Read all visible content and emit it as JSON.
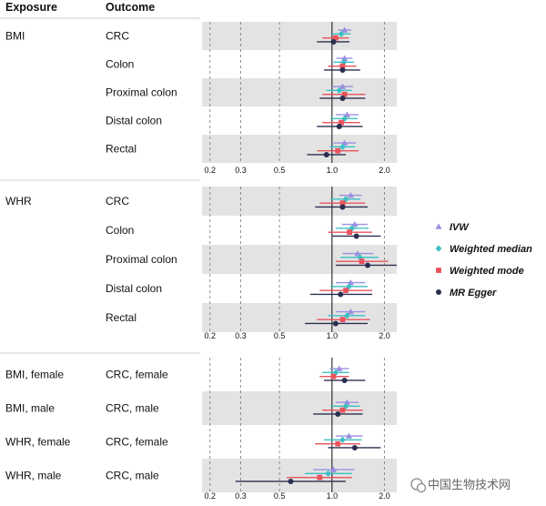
{
  "headers": {
    "exposure": "Exposure",
    "outcome": "Outcome"
  },
  "legend": [
    {
      "name": "IVW",
      "color": "#9b8fe0",
      "marker": "triangle"
    },
    {
      "name": "Weighted median",
      "color": "#3cc0c4",
      "marker": "diamond"
    },
    {
      "name": "Weighted mode",
      "color": "#e8535d",
      "marker": "square"
    },
    {
      "name": "MR Egger",
      "color": "#2b2f4f",
      "marker": "circle"
    }
  ],
  "watermark": "中国生物技术网",
  "chart_data": {
    "type": "forest",
    "x_scale": "log",
    "xlim": [
      0.18,
      2.35
    ],
    "reference_line": 1.0,
    "x_ticks": [
      "0.2",
      "0.3",
      "0.5",
      "1.0",
      "2.0"
    ],
    "x_tick_values": [
      0.2,
      0.3,
      0.5,
      1.0,
      2.0
    ],
    "methods": [
      "IVW",
      "Weighted median",
      "Weighted mode",
      "MR Egger"
    ],
    "panels": [
      {
        "rows": [
          {
            "exposure": "BMI",
            "outcome": "CRC",
            "shade": true,
            "estimates": [
              [
                1.18,
                1.08,
                1.29
              ],
              [
                1.13,
                1.0,
                1.28
              ],
              [
                1.05,
                0.88,
                1.25
              ],
              [
                1.02,
                0.82,
                1.26
              ]
            ]
          },
          {
            "exposure": "",
            "outcome": "Colon",
            "shade": false,
            "estimates": [
              [
                1.18,
                1.06,
                1.31
              ],
              [
                1.17,
                1.02,
                1.34
              ],
              [
                1.15,
                0.95,
                1.38
              ],
              [
                1.15,
                0.9,
                1.45
              ]
            ]
          },
          {
            "exposure": "",
            "outcome": "Proximal colon",
            "shade": true,
            "estimates": [
              [
                1.15,
                1.0,
                1.32
              ],
              [
                1.1,
                0.93,
                1.3
              ],
              [
                1.18,
                0.88,
                1.55
              ],
              [
                1.15,
                0.85,
                1.55
              ]
            ]
          },
          {
            "exposure": "",
            "outcome": "Distal colon",
            "shade": false,
            "estimates": [
              [
                1.22,
                1.05,
                1.42
              ],
              [
                1.18,
                0.98,
                1.4
              ],
              [
                1.13,
                0.88,
                1.45
              ],
              [
                1.1,
                0.82,
                1.5
              ]
            ]
          },
          {
            "exposure": "",
            "outcome": "Rectal",
            "shade": true,
            "estimates": [
              [
                1.18,
                1.02,
                1.37
              ],
              [
                1.15,
                0.97,
                1.36
              ],
              [
                1.08,
                0.82,
                1.42
              ],
              [
                0.93,
                0.72,
                1.2
              ]
            ]
          }
        ]
      },
      {
        "rows": [
          {
            "exposure": "WHR",
            "outcome": "CRC",
            "shade": true,
            "estimates": [
              [
                1.28,
                1.1,
                1.48
              ],
              [
                1.2,
                0.98,
                1.45
              ],
              [
                1.15,
                0.85,
                1.55
              ],
              [
                1.15,
                0.8,
                1.6
              ]
            ]
          },
          {
            "exposure": "",
            "outcome": "Colon",
            "shade": false,
            "estimates": [
              [
                1.35,
                1.14,
                1.6
              ],
              [
                1.3,
                1.05,
                1.62
              ],
              [
                1.26,
                0.95,
                1.7
              ],
              [
                1.38,
                1.0,
                1.9
              ]
            ]
          },
          {
            "exposure": "",
            "outcome": "Proximal colon",
            "shade": true,
            "estimates": [
              [
                1.4,
                1.15,
                1.72
              ],
              [
                1.45,
                1.12,
                1.85
              ],
              [
                1.48,
                1.05,
                2.1
              ],
              [
                1.6,
                1.05,
                2.4
              ]
            ]
          },
          {
            "exposure": "",
            "outcome": "Distal colon",
            "shade": false,
            "estimates": [
              [
                1.28,
                1.05,
                1.55
              ],
              [
                1.25,
                0.98,
                1.6
              ],
              [
                1.2,
                0.85,
                1.7
              ],
              [
                1.12,
                0.75,
                1.7
              ]
            ]
          },
          {
            "exposure": "",
            "outcome": "Rectal",
            "shade": true,
            "estimates": [
              [
                1.28,
                1.05,
                1.55
              ],
              [
                1.22,
                0.95,
                1.55
              ],
              [
                1.15,
                0.82,
                1.65
              ],
              [
                1.05,
                0.7,
                1.6
              ]
            ]
          }
        ]
      },
      {
        "rows": [
          {
            "exposure": "BMI, female",
            "outcome": "CRC, female",
            "shade": false,
            "estimates": [
              [
                1.1,
                0.97,
                1.25
              ],
              [
                1.05,
                0.88,
                1.25
              ],
              [
                1.02,
                0.85,
                1.25
              ],
              [
                1.18,
                0.9,
                1.55
              ]
            ]
          },
          {
            "exposure": "BMI, male",
            "outcome": "CRC, male",
            "shade": true,
            "estimates": [
              [
                1.22,
                1.05,
                1.42
              ],
              [
                1.2,
                0.98,
                1.45
              ],
              [
                1.15,
                0.88,
                1.5
              ],
              [
                1.08,
                0.78,
                1.5
              ]
            ]
          },
          {
            "exposure": "WHR, female",
            "outcome": "CRC, female",
            "shade": false,
            "estimates": [
              [
                1.25,
                1.05,
                1.5
              ],
              [
                1.15,
                0.9,
                1.48
              ],
              [
                1.08,
                0.8,
                1.45
              ],
              [
                1.35,
                0.95,
                1.9
              ]
            ]
          },
          {
            "exposure": "WHR, male",
            "outcome": "CRC, male",
            "shade": true,
            "estimates": [
              [
                1.02,
                0.78,
                1.35
              ],
              [
                0.95,
                0.7,
                1.3
              ],
              [
                0.85,
                0.55,
                1.3
              ],
              [
                0.58,
                0.28,
                1.2
              ]
            ]
          }
        ]
      }
    ]
  }
}
